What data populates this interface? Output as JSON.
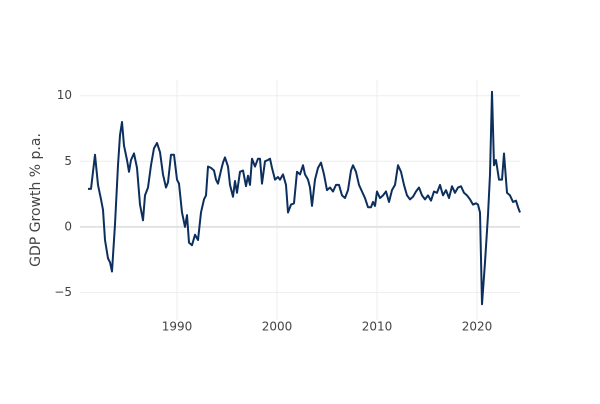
{
  "chart_data": {
    "type": "line",
    "y_label": "GDP Growth % p.a.",
    "color": "#0d2f5e",
    "grid": true,
    "x": [
      1981.1,
      1981.4,
      1981.8,
      1982.1,
      1982.4,
      1982.6,
      1982.8,
      1983.1,
      1983.3,
      1983.5,
      1983.8,
      1984.1,
      1984.3,
      1984.5,
      1984.7,
      1985.0,
      1985.2,
      1985.4,
      1985.7,
      1986.0,
      1986.3,
      1986.6,
      1986.8,
      1987.1,
      1987.4,
      1987.7,
      1988.0,
      1988.3,
      1988.6,
      1988.9,
      1989.1,
      1989.4,
      1989.7,
      1990.0,
      1990.2,
      1990.5,
      1990.8,
      1991.0,
      1991.2,
      1991.5,
      1991.8,
      1992.1,
      1992.4,
      1992.7,
      1992.9,
      1993.1,
      1993.4,
      1993.7,
      1993.9,
      1994.1,
      1994.4,
      1994.6,
      1994.8,
      1995.1,
      1995.3,
      1995.6,
      1995.8,
      1996.0,
      1996.3,
      1996.6,
      1996.9,
      1997.1,
      1997.3,
      1997.5,
      1997.8,
      1998.1,
      1998.3,
      1998.5,
      1998.8,
      1999.1,
      1999.3,
      1999.5,
      1999.8,
      2000.1,
      2000.3,
      2000.6,
      2000.9,
      2001.1,
      2001.4,
      2001.7,
      2002.0,
      2002.3,
      2002.6,
      2002.8,
      2003.1,
      2003.3,
      2003.5,
      2003.8,
      2004.1,
      2004.4,
      2004.7,
      2005.0,
      2005.3,
      2005.6,
      2005.9,
      2006.2,
      2006.5,
      2006.8,
      2007.1,
      2007.4,
      2007.6,
      2007.9,
      2008.2,
      2008.5,
      2008.8,
      2009.1,
      2009.4,
      2009.6,
      2009.8,
      2010.0,
      2010.3,
      2010.6,
      2010.9,
      2011.2,
      2011.5,
      2011.8,
      2012.1,
      2012.4,
      2012.7,
      2013.0,
      2013.3,
      2013.6,
      2013.9,
      2014.2,
      2014.5,
      2014.8,
      2015.1,
      2015.4,
      2015.7,
      2016.0,
      2016.3,
      2016.6,
      2016.9,
      2017.2,
      2017.5,
      2017.8,
      2018.1,
      2018.4,
      2018.7,
      2019.0,
      2019.3,
      2019.6,
      2019.9,
      2020.1,
      2020.3,
      2020.5,
      2020.8,
      2021.1,
      2021.3,
      2021.5,
      2021.7,
      2021.9,
      2022.2,
      2022.5,
      2022.7,
      2023.0,
      2023.3,
      2023.6,
      2023.9,
      2024.1,
      2024.3
    ],
    "values": [
      2.9,
      2.9,
      5.5,
      3.2,
      2.1,
      1.3,
      -1.0,
      -2.4,
      -2.7,
      -3.4,
      0.2,
      4.7,
      7.0,
      8.0,
      6.2,
      5.1,
      4.2,
      5.1,
      5.6,
      4.5,
      1.7,
      0.5,
      2.4,
      3.0,
      4.7,
      6.0,
      6.4,
      5.7,
      4.0,
      3.0,
      3.4,
      5.5,
      5.5,
      3.6,
      3.3,
      1.1,
      0.0,
      0.9,
      -1.2,
      -1.4,
      -0.6,
      -1.0,
      1.1,
      2.1,
      2.4,
      4.6,
      4.5,
      4.3,
      3.6,
      3.3,
      4.3,
      4.9,
      5.3,
      4.6,
      3.2,
      2.3,
      3.5,
      2.6,
      4.2,
      4.3,
      3.1,
      3.9,
      3.2,
      5.2,
      4.6,
      5.2,
      5.2,
      3.3,
      5.0,
      5.1,
      5.2,
      4.5,
      3.6,
      3.8,
      3.6,
      4.0,
      3.2,
      1.1,
      1.7,
      1.8,
      4.2,
      4.0,
      4.7,
      4.0,
      3.6,
      3.0,
      1.6,
      3.6,
      4.5,
      4.9,
      4.0,
      2.8,
      3.0,
      2.7,
      3.2,
      3.2,
      2.4,
      2.2,
      2.8,
      4.3,
      4.7,
      4.2,
      3.2,
      2.7,
      2.2,
      1.5,
      1.5,
      1.9,
      1.6,
      2.7,
      2.2,
      2.4,
      2.7,
      1.9,
      2.8,
      3.2,
      4.7,
      4.2,
      3.2,
      2.4,
      2.1,
      2.3,
      2.7,
      3.0,
      2.4,
      2.1,
      2.4,
      2.0,
      2.7,
      2.6,
      3.2,
      2.4,
      2.8,
      2.2,
      3.1,
      2.6,
      3.0,
      3.1,
      2.6,
      2.4,
      2.1,
      1.7,
      1.8,
      1.7,
      1.1,
      -5.9,
      -2.7,
      0.9,
      4.0,
      10.3,
      4.7,
      5.1,
      3.6,
      3.6,
      5.6,
      2.6,
      2.4,
      1.9,
      2.0,
      1.5,
      1.1
    ],
    "xlim": [
      1980.3,
      2024.3
    ],
    "xticks": [
      1990,
      2000,
      2010,
      2020
    ],
    "ylim": [
      -7.1,
      11.2
    ],
    "yticks": [
      {
        "value": -5,
        "label": "−5"
      },
      0,
      5,
      10
    ]
  }
}
